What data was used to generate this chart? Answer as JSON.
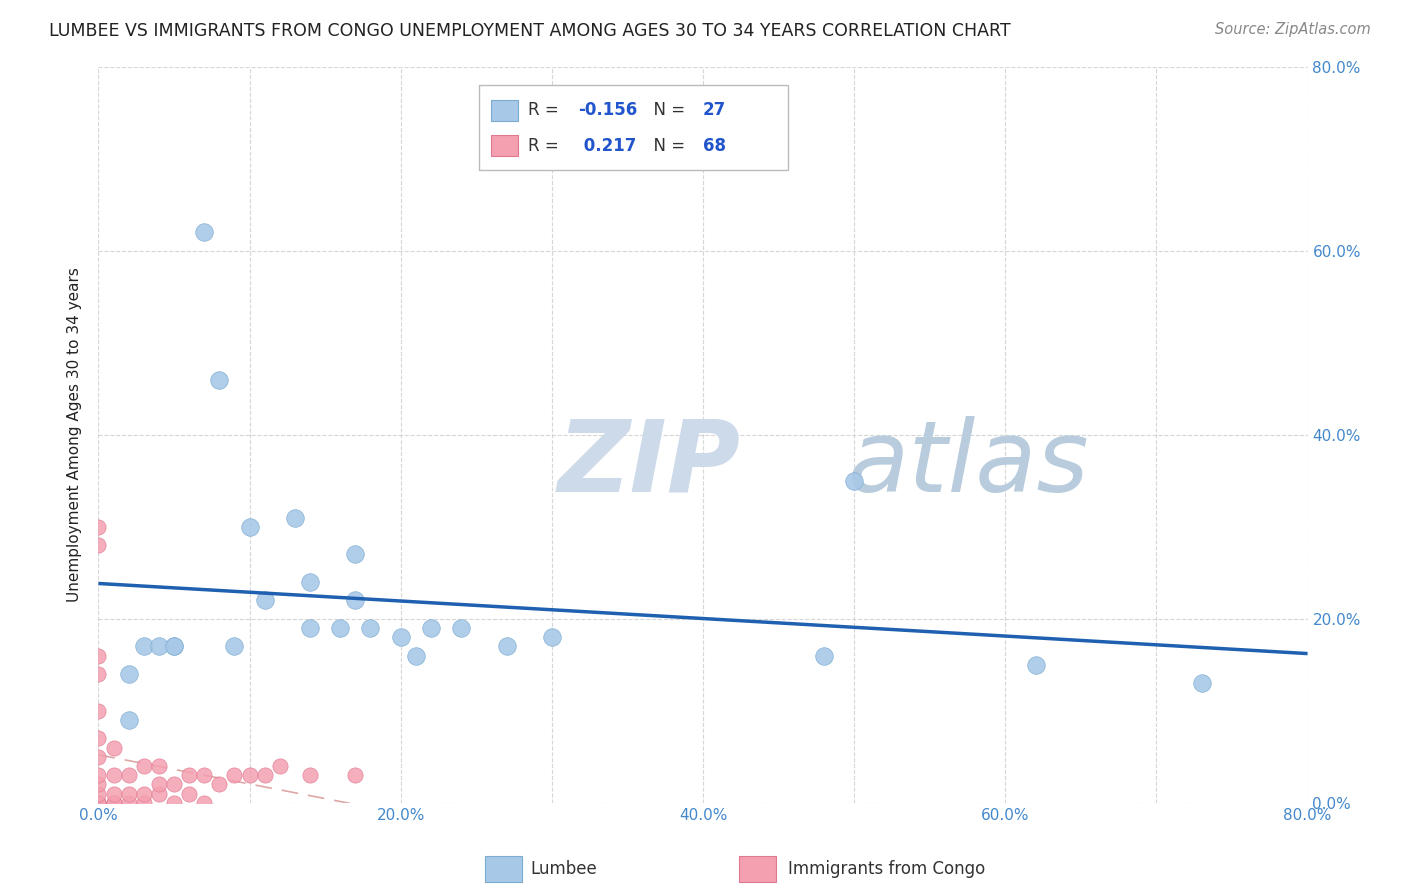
{
  "title": "LUMBEE VS IMMIGRANTS FROM CONGO UNEMPLOYMENT AMONG AGES 30 TO 34 YEARS CORRELATION CHART",
  "source_text": "Source: ZipAtlas.com",
  "ylabel": "Unemployment Among Ages 30 to 34 years",
  "xlim": [
    0.0,
    0.8
  ],
  "ylim": [
    0.0,
    0.8
  ],
  "xticks": [
    0.0,
    0.1,
    0.2,
    0.3,
    0.4,
    0.5,
    0.6,
    0.7,
    0.8
  ],
  "yticks": [
    0.0,
    0.2,
    0.4,
    0.6,
    0.8
  ],
  "xticklabels": [
    "0.0%",
    "",
    "20.0%",
    "",
    "40.0%",
    "",
    "60.0%",
    "",
    "80.0%"
  ],
  "yticklabels_right": [
    "0.0%",
    "20.0%",
    "40.0%",
    "60.0%",
    "80.0%"
  ],
  "lumbee_R": -0.156,
  "lumbee_N": 27,
  "congo_R": 0.217,
  "congo_N": 68,
  "lumbee_color": "#a8c8e8",
  "congo_color": "#f4a0b0",
  "lumbee_edge_color": "#7aacd0",
  "congo_edge_color": "#e07890",
  "lumbee_line_color": "#2060b0",
  "congo_line_color": "#d89090",
  "grid_color": "#cccccc",
  "background_color": "#ffffff",
  "title_color": "#222222",
  "axis_label_color": "#4488cc",
  "legend_R_color": "#2255cc",
  "legend_N_color": "#2255cc",
  "lumbee_scatter_x": [
    0.02,
    0.03,
    0.05,
    0.07,
    0.08,
    0.1,
    0.11,
    0.13,
    0.14,
    0.16,
    0.17,
    0.18,
    0.2,
    0.22,
    0.27,
    0.3,
    0.48,
    0.5,
    0.62,
    0.73
  ],
  "lumbee_scatter_y": [
    0.09,
    0.17,
    0.17,
    0.62,
    0.46,
    0.3,
    0.22,
    0.31,
    0.24,
    0.19,
    0.27,
    0.19,
    0.18,
    0.19,
    0.17,
    0.18,
    0.16,
    0.35,
    0.15,
    0.13
  ],
  "lumbee_scatter_x2": [
    0.02,
    0.04,
    0.05,
    0.09,
    0.14,
    0.17,
    0.21,
    0.24
  ],
  "lumbee_scatter_y2": [
    0.14,
    0.17,
    0.17,
    0.17,
    0.19,
    0.22,
    0.16,
    0.19
  ],
  "congo_scatter_x": [
    0.0,
    0.0,
    0.0,
    0.0,
    0.0,
    0.0,
    0.0,
    0.0,
    0.0,
    0.0,
    0.0,
    0.0,
    0.0,
    0.0,
    0.0,
    0.01,
    0.01,
    0.01,
    0.01,
    0.01,
    0.02,
    0.02,
    0.02,
    0.03,
    0.03,
    0.03,
    0.04,
    0.04,
    0.04,
    0.05,
    0.05,
    0.06,
    0.06,
    0.07,
    0.07,
    0.08,
    0.09,
    0.1,
    0.11,
    0.12,
    0.14,
    0.17
  ],
  "congo_scatter_y": [
    0.0,
    0.0,
    0.0,
    0.0,
    0.0,
    0.01,
    0.02,
    0.03,
    0.05,
    0.07,
    0.1,
    0.14,
    0.16,
    0.28,
    0.3,
    0.0,
    0.0,
    0.01,
    0.03,
    0.06,
    0.0,
    0.01,
    0.03,
    0.0,
    0.01,
    0.04,
    0.01,
    0.02,
    0.04,
    0.0,
    0.02,
    0.01,
    0.03,
    0.0,
    0.03,
    0.02,
    0.03,
    0.03,
    0.03,
    0.04,
    0.03,
    0.03
  ],
  "watermark_zip_color": "#c8d8ee",
  "watermark_atlas_color": "#b8cce0"
}
